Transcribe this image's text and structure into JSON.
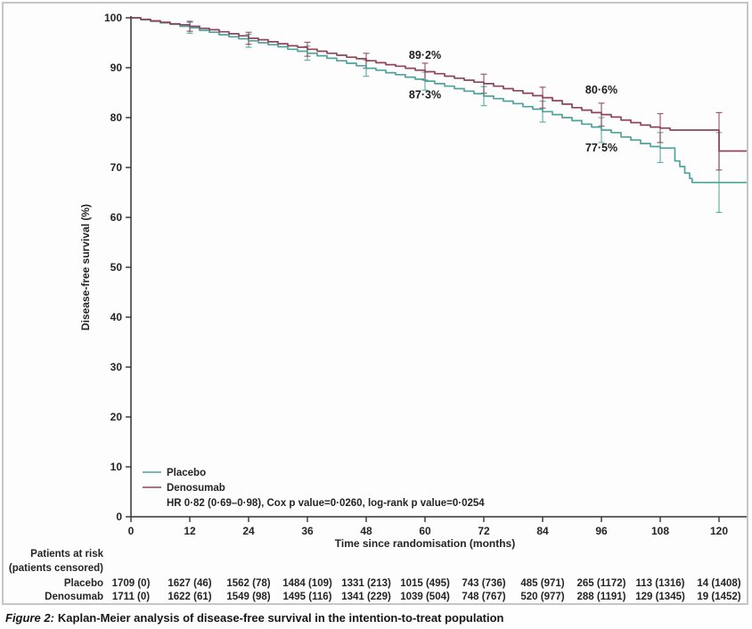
{
  "figure": {
    "caption_prefix": "Figure 2:",
    "caption_text": "Kaplan-Meier analysis of disease-free survival in the intention-to-treat population"
  },
  "chart_data": {
    "type": "line",
    "curve_style": "step-after",
    "title": "",
    "xlabel": "Time since randomisation (months)",
    "ylabel": "Disease-free survival (%)",
    "xlim": [
      0,
      120
    ],
    "ylim": [
      0,
      100
    ],
    "xticks": [
      0,
      12,
      24,
      36,
      48,
      60,
      72,
      84,
      96,
      108,
      120
    ],
    "yticks": [
      0,
      10,
      20,
      30,
      40,
      50,
      60,
      70,
      80,
      90,
      100
    ],
    "grid": false,
    "legend_position": "inside-bottom-left",
    "stats_line": "HR 0·82 (0·69–0·98), Cox p value=0·0260, log-rank p value=0·0254",
    "axis_color": "#333333",
    "series": [
      {
        "name": "Placebo",
        "color": "#4da49c",
        "points": [
          [
            0,
            100
          ],
          [
            2,
            99.6
          ],
          [
            4,
            99.3
          ],
          [
            6,
            99.0
          ],
          [
            8,
            98.7
          ],
          [
            10,
            98.3
          ],
          [
            12,
            98.0
          ],
          [
            14,
            97.5
          ],
          [
            16,
            97.1
          ],
          [
            18,
            96.6
          ],
          [
            20,
            96.2
          ],
          [
            22,
            95.8
          ],
          [
            24,
            95.4
          ],
          [
            26,
            95.0
          ],
          [
            28,
            94.6
          ],
          [
            30,
            94.2
          ],
          [
            32,
            93.7
          ],
          [
            34,
            93.3
          ],
          [
            36,
            92.9
          ],
          [
            38,
            92.4
          ],
          [
            40,
            91.9
          ],
          [
            42,
            91.4
          ],
          [
            44,
            90.9
          ],
          [
            46,
            90.4
          ],
          [
            48,
            89.9
          ],
          [
            50,
            89.5
          ],
          [
            52,
            89.0
          ],
          [
            54,
            88.6
          ],
          [
            56,
            88.1
          ],
          [
            58,
            87.7
          ],
          [
            60,
            87.3
          ],
          [
            62,
            86.8
          ],
          [
            64,
            86.3
          ],
          [
            66,
            85.8
          ],
          [
            68,
            85.3
          ],
          [
            70,
            84.8
          ],
          [
            72,
            84.3
          ],
          [
            74,
            83.8
          ],
          [
            76,
            83.3
          ],
          [
            78,
            82.8
          ],
          [
            80,
            82.2
          ],
          [
            82,
            81.7
          ],
          [
            84,
            81.2
          ],
          [
            86,
            80.6
          ],
          [
            88,
            80.0
          ],
          [
            90,
            79.4
          ],
          [
            92,
            78.7
          ],
          [
            94,
            78.1
          ],
          [
            96,
            77.5
          ],
          [
            98,
            77.0
          ],
          [
            100,
            76.1
          ],
          [
            102,
            75.5
          ],
          [
            104,
            74.8
          ],
          [
            106,
            74.2
          ],
          [
            108,
            73.9
          ],
          [
            111,
            71.3
          ],
          [
            112,
            70.2
          ],
          [
            113,
            68.9
          ],
          [
            114,
            67.8
          ],
          [
            114.5,
            67.0
          ],
          [
            126,
            67.0
          ]
        ],
        "error_bars": [
          [
            12,
            96.9,
            99.1
          ],
          [
            24,
            94.1,
            96.7
          ],
          [
            36,
            91.5,
            94.3
          ],
          [
            48,
            88.3,
            91.5
          ],
          [
            60,
            85.5,
            89.1
          ],
          [
            72,
            82.4,
            86.2
          ],
          [
            84,
            79.1,
            83.3
          ],
          [
            96,
            75.0,
            80.0
          ],
          [
            108,
            71.0,
            77.0
          ],
          [
            120,
            61.0,
            77.0
          ]
        ]
      },
      {
        "name": "Denosumab",
        "color": "#8e4459",
        "points": [
          [
            0,
            100
          ],
          [
            2,
            99.7
          ],
          [
            4,
            99.4
          ],
          [
            6,
            99.1
          ],
          [
            8,
            98.8
          ],
          [
            10,
            98.6
          ],
          [
            12,
            98.3
          ],
          [
            14,
            97.9
          ],
          [
            16,
            97.6
          ],
          [
            18,
            97.2
          ],
          [
            20,
            96.8
          ],
          [
            22,
            96.4
          ],
          [
            24,
            95.9
          ],
          [
            26,
            95.6
          ],
          [
            28,
            95.2
          ],
          [
            30,
            94.8
          ],
          [
            32,
            94.4
          ],
          [
            34,
            94.1
          ],
          [
            36,
            93.7
          ],
          [
            38,
            93.3
          ],
          [
            40,
            92.9
          ],
          [
            42,
            92.5
          ],
          [
            44,
            92.1
          ],
          [
            46,
            91.8
          ],
          [
            48,
            91.4
          ],
          [
            50,
            91.0
          ],
          [
            52,
            90.6
          ],
          [
            54,
            90.3
          ],
          [
            56,
            89.9
          ],
          [
            58,
            89.5
          ],
          [
            60,
            89.2
          ],
          [
            62,
            88.8
          ],
          [
            64,
            88.3
          ],
          [
            66,
            87.9
          ],
          [
            68,
            87.5
          ],
          [
            70,
            87.1
          ],
          [
            72,
            86.8
          ],
          [
            74,
            86.3
          ],
          [
            76,
            85.8
          ],
          [
            78,
            85.4
          ],
          [
            80,
            84.9
          ],
          [
            82,
            84.4
          ],
          [
            84,
            84.0
          ],
          [
            86,
            83.4
          ],
          [
            88,
            82.7
          ],
          [
            90,
            82.0
          ],
          [
            92,
            81.5
          ],
          [
            94,
            81.0
          ],
          [
            96,
            80.6
          ],
          [
            98,
            80.1
          ],
          [
            100,
            79.5
          ],
          [
            102,
            79.0
          ],
          [
            104,
            78.5
          ],
          [
            106,
            78.1
          ],
          [
            108,
            77.9
          ],
          [
            110,
            77.5
          ],
          [
            120,
            73.3
          ],
          [
            126,
            73.3
          ]
        ],
        "error_bars": [
          [
            12,
            97.3,
            99.3
          ],
          [
            24,
            94.7,
            97.1
          ],
          [
            36,
            92.3,
            95.1
          ],
          [
            48,
            89.9,
            92.9
          ],
          [
            60,
            87.5,
            90.9
          ],
          [
            72,
            84.9,
            88.7
          ],
          [
            84,
            81.9,
            86.1
          ],
          [
            96,
            78.3,
            82.9
          ],
          [
            108,
            75.0,
            80.8
          ],
          [
            120,
            69.5,
            81.0
          ]
        ]
      }
    ],
    "annotations": [
      {
        "text": "89·2%",
        "x": 60,
        "y": 91.8,
        "series": "Denosumab"
      },
      {
        "text": "87·3%",
        "x": 60,
        "y": 83.8,
        "series": "Placebo"
      },
      {
        "text": "80·6%",
        "x": 96,
        "y": 84.8,
        "series": "Denosumab"
      },
      {
        "text": "77·5%",
        "x": 96,
        "y": 73.2,
        "series": "Placebo"
      }
    ]
  },
  "risk_table": {
    "header_line1": "Patients at risk",
    "header_line2": "(patients censored)",
    "rows": [
      {
        "label": "Placebo",
        "values": [
          "1709 (0)",
          "1627 (46)",
          "1562 (78)",
          "1484 (109)",
          "1331 (213)",
          "1015 (495)",
          "743 (736)",
          "485 (971)",
          "265 (1172)",
          "113 (1316)",
          "14 (1408)"
        ]
      },
      {
        "label": "Denosumab",
        "values": [
          "1711 (0)",
          "1622 (61)",
          "1549 (98)",
          "1495 (116)",
          "1341 (229)",
          "1039 (504)",
          "748 (767)",
          "520 (977)",
          "288 (1191)",
          "129 (1345)",
          "19 (1452)"
        ]
      }
    ]
  }
}
